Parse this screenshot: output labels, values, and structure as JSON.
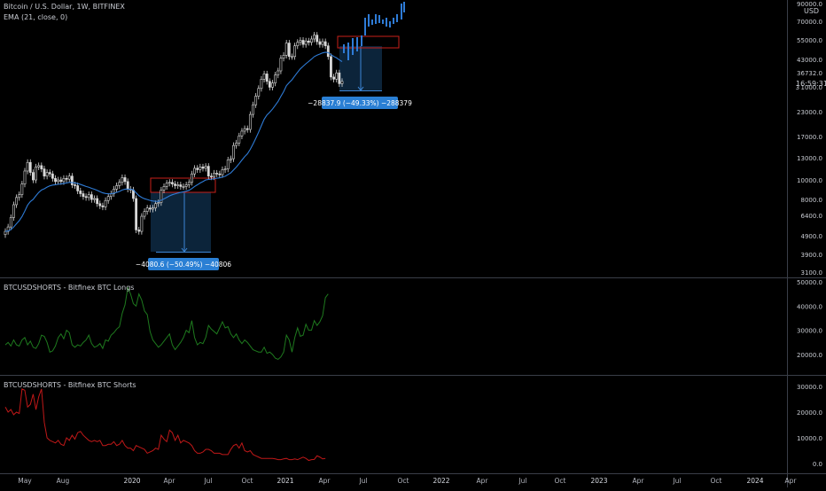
{
  "header": {
    "symbol": "Bitcoin / U.S. Dollar, 1W, BITFINEX",
    "indicator": "EMA (21, close, 0)"
  },
  "panes": {
    "price": {
      "currency": "USD",
      "price_axis_ticks": [
        "90000.0",
        "70000.0",
        "55000.0",
        "43000.0",
        "36732.0",
        "3 1000.0",
        "23000.0",
        "17000.0",
        "13000.0",
        "10000.0",
        "8000.0",
        "6400.0",
        "4900.0",
        "3900.0",
        "3100.0"
      ],
      "last_price": "36732.0",
      "countdown": "16:59:31"
    },
    "longs": {
      "title": "BTCUSDSHORTS - Bitfinex BTC Longs",
      "axis_ticks": [
        "50000.0",
        "40000.0",
        "30000.0",
        "20000.0"
      ]
    },
    "shorts": {
      "title": "BTCUSDSHORTS - Bitfinex BTC Shorts",
      "axis_ticks": [
        "30000.0",
        "20000.0",
        "10000.0",
        "0.0"
      ]
    }
  },
  "time_axis": {
    "labels": [
      "May",
      "Aug",
      "2020",
      "Apr",
      "Jul",
      "Oct",
      "2021",
      "Apr",
      "Jul",
      "Oct",
      "2022",
      "Apr",
      "Jul",
      "Oct",
      "2023",
      "Apr",
      "Jul",
      "Oct",
      "2024",
      "Apr"
    ]
  },
  "measurements": [
    {
      "label": "−4080.6 (−50.49%) −40806"
    },
    {
      "label": "−28837.9 (−49.33%) −288379"
    }
  ],
  "colors": {
    "candle": "#d8d8d8",
    "ema": "#2e7bd6",
    "projection": "#2e7bd6",
    "longs": "#1e7a1e",
    "shorts": "#c01818",
    "zone_border": "#c8201a",
    "measure_fill": "#0e2a44",
    "measure_label_bg": "#2a7fd4"
  },
  "chart_data": [
    {
      "type": "candlestick",
      "title": "Bitcoin / U.S. Dollar, 1W, BITFINEX",
      "scale": "log",
      "ylim": [
        3100,
        90000
      ],
      "x_labels": [
        "May",
        "Aug",
        "2020",
        "Apr",
        "Jul",
        "Oct",
        "2021",
        "Apr",
        "Jul",
        "Oct"
      ],
      "close": [
        5200,
        5500,
        6200,
        7300,
        8000,
        8300,
        9500,
        11200,
        12500,
        11000,
        10000,
        11800,
        12000,
        11500,
        10500,
        11000,
        10800,
        10200,
        9800,
        10000,
        9800,
        10200,
        10100,
        10500,
        9400,
        9300,
        8700,
        8400,
        8100,
        8000,
        8300,
        7800,
        7900,
        7400,
        7200,
        7100,
        7700,
        8100,
        8400,
        8900,
        9300,
        9700,
        10300,
        9800,
        8900,
        8800,
        7900,
        5300,
        5200,
        6300,
        6700,
        7000,
        6900,
        7000,
        7400,
        7500,
        8800,
        9200,
        9600,
        9700,
        9500,
        9300,
        9400,
        9200,
        9200,
        9400,
        9700,
        10800,
        11600,
        11400,
        11800,
        11600,
        11900,
        10500,
        10400,
        10900,
        10800,
        10700,
        11400,
        11500,
        12900,
        13100,
        15500,
        16000,
        17500,
        18600,
        19200,
        19000,
        23000,
        26000,
        29000,
        32000,
        36000,
        38500,
        35000,
        32500,
        34300,
        38000,
        40000,
        47000,
        48800,
        57000,
        48000,
        48000,
        55000,
        57500,
        59000,
        56000,
        58500,
        57500,
        60000,
        63000,
        58000,
        56000,
        58000,
        55000,
        48000,
        37000,
        36000,
        39000,
        34000,
        35000
      ],
      "ema": [
        5200,
        5227,
        5320,
        5500,
        5730,
        5960,
        6280,
        6730,
        7260,
        7600,
        7810,
        8180,
        8530,
        8800,
        8940,
        9130,
        9280,
        9370,
        9410,
        9470,
        9500,
        9570,
        9620,
        9700,
        9670,
        9640,
        9560,
        9450,
        9330,
        9210,
        9120,
        8990,
        8890,
        8760,
        8620,
        8490,
        8420,
        8390,
        8390,
        8450,
        8530,
        8640,
        8800,
        8890,
        8890,
        8890,
        8820,
        8490,
        8190,
        8010,
        7880,
        7800,
        7710,
        7650,
        7630,
        7620,
        7730,
        7860,
        8010,
        8170,
        8290,
        8380,
        8470,
        8540,
        8600,
        8670,
        8770,
        8960,
        9200,
        9400,
        9620,
        9800,
        10000,
        10060,
        10090,
        10160,
        10220,
        10270,
        10380,
        10480,
        10710,
        10940,
        11360,
        11780,
        12300,
        12870,
        13450,
        13940,
        14760,
        15790,
        16980,
        18340,
        19950,
        21640,
        22850,
        23640,
        24620,
        25830,
        27120,
        28920,
        30740,
        33150,
        34500,
        35730,
        37490,
        39310,
        41060,
        42420,
        43830,
        45080,
        46440,
        47950,
        48870,
        49520,
        50290,
        50720,
        50470,
        49250,
        48050,
        47220,
        46020,
        45020
      ]
    },
    {
      "type": "line",
      "title": "BTCUSDSHORTS - Bitfinex BTC Longs",
      "ylim": [
        15000,
        50000
      ],
      "series": [
        {
          "values": [
            24000,
            25000,
            23500,
            26000,
            24000,
            23500,
            26000,
            27000,
            24000,
            25500,
            23000,
            22500,
            24500,
            28000,
            27500,
            25000,
            21000,
            21500,
            23500,
            27000,
            28500,
            26500,
            30000,
            29000,
            24000,
            23000,
            24000,
            23500,
            25000,
            26000,
            28000,
            24500,
            23000,
            23500,
            24500,
            22500,
            26000,
            25500,
            28000,
            29000,
            30500,
            31500,
            37000,
            40500,
            47500,
            45000,
            41000,
            40000,
            45000,
            42500,
            38000,
            36500,
            29500,
            26000,
            24500,
            23000,
            24000,
            25500,
            27000,
            28500,
            24000,
            22000,
            23500,
            25000,
            27000,
            30000,
            29000,
            34000,
            27000,
            24000,
            25000,
            24500,
            27000,
            32000,
            30500,
            29500,
            28500,
            31000,
            33500,
            31000,
            31500,
            28500,
            27000,
            28500,
            26000,
            24500,
            26000,
            25000,
            23500,
            22000,
            21500,
            21000,
            21000,
            23000,
            20500,
            21000,
            20000,
            18500,
            18000,
            19000,
            21000,
            28000,
            26000,
            21000,
            27000,
            31000,
            27500,
            28000,
            32500,
            30000,
            30000,
            34000,
            32000,
            33500,
            36000,
            43500,
            45000
          ]
        }
      ]
    },
    {
      "type": "line",
      "title": "BTCUSDSHORTS - Bitfinex BTC Shorts",
      "ylim": [
        -2000,
        33000
      ],
      "series": [
        {
          "values": [
            22000,
            20000,
            21000,
            19000,
            20000,
            19500,
            29000,
            28500,
            22000,
            23000,
            27000,
            21000,
            26000,
            29000,
            16000,
            10000,
            9000,
            8500,
            8000,
            9000,
            7500,
            7000,
            10000,
            9000,
            11000,
            9500,
            12000,
            12500,
            11000,
            10000,
            9000,
            8500,
            9000,
            8500,
            9000,
            7000,
            7000,
            7500,
            7500,
            8500,
            7000,
            7500,
            9000,
            7000,
            6000,
            6000,
            5000,
            7000,
            6500,
            6000,
            5500,
            4000,
            4500,
            5000,
            6000,
            5500,
            11000,
            9500,
            8500,
            13000,
            12000,
            9000,
            11000,
            8000,
            9000,
            8500,
            8000,
            7000,
            5000,
            4000,
            4000,
            4500,
            5500,
            5500,
            5000,
            4000,
            4000,
            4000,
            3500,
            3500,
            3500,
            5500,
            7000,
            7500,
            6000,
            8000,
            5000,
            4500,
            5000,
            3500,
            3000,
            2500,
            2000,
            2000,
            2000,
            2000,
            2000,
            1800,
            1500,
            1500,
            1800,
            2000,
            1500,
            1500,
            1800,
            1500,
            2000,
            2500,
            2000,
            1200,
            1500,
            1600,
            3000,
            2500,
            1800,
            2000
          ]
        }
      ]
    }
  ]
}
